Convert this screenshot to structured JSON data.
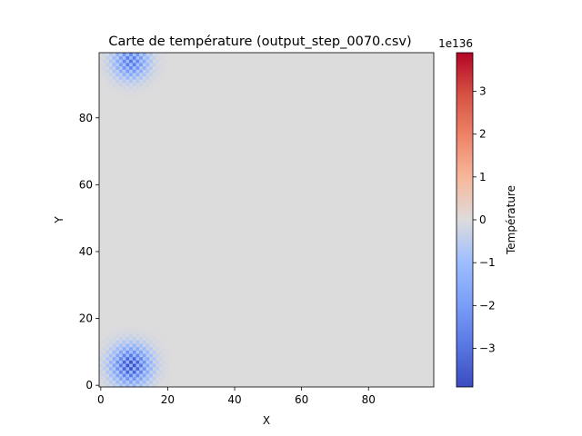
{
  "chart_data": {
    "type": "heatmap",
    "title": "Carte de température (output_step_0070.csv)",
    "xlabel": "X",
    "ylabel": "Y",
    "xlim": [
      -0.5,
      99.5
    ],
    "ylim": [
      -0.5,
      99.5
    ],
    "x_ticks": [
      0,
      20,
      40,
      60,
      80
    ],
    "y_ticks": [
      0,
      20,
      40,
      60,
      80
    ],
    "grid_size": [
      100,
      100
    ],
    "background_value": 0,
    "hotspots": [
      {
        "x": 9,
        "y": 6,
        "peak": -3.9,
        "radius": 4.0
      },
      {
        "x": 9,
        "y": 97,
        "peak": -3.0,
        "radius": 3.6
      }
    ],
    "colorbar": {
      "label": "Température",
      "colormap": "coolwarm",
      "scale_label": "1e136",
      "range": [
        -3.9,
        3.9
      ],
      "ticks": [
        -3,
        -2,
        -1,
        0,
        1,
        2,
        3
      ]
    }
  }
}
